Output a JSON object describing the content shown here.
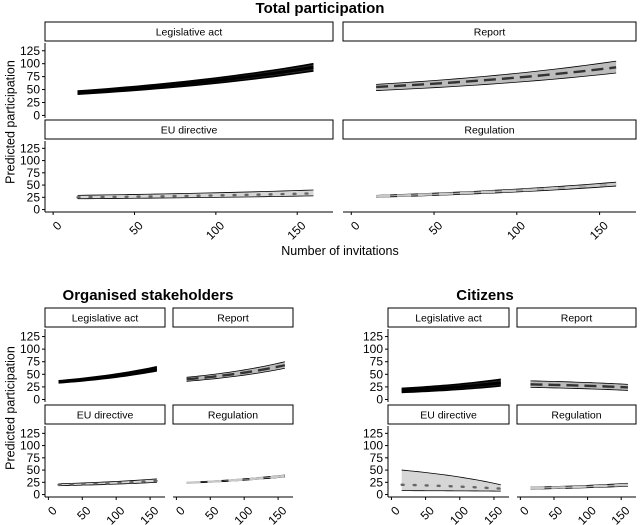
{
  "chart_data": {
    "type": "line",
    "x_label": "Number of invitations",
    "y_label": "Predicted participation",
    "panels": [
      {
        "title": "Total participation",
        "x_ticks": [
          0,
          50,
          100,
          150
        ],
        "y_ticks": [
          0,
          25,
          50,
          75,
          100,
          125
        ],
        "xlim": [
          -5,
          172
        ],
        "ylim": [
          -5,
          140
        ],
        "facets": [
          {
            "label": "Legislative act",
            "style": "solid",
            "color": "#000000",
            "band_fill": "#000000",
            "x": [
              15,
              160
            ],
            "mid": [
              44,
              93
            ],
            "low": [
              41,
              86
            ],
            "high": [
              47,
              100
            ]
          },
          {
            "label": "Report",
            "style": "dashed",
            "color": "#333333",
            "band_fill": "#a6a6a6",
            "x": [
              15,
              160
            ],
            "mid": [
              55,
              93
            ],
            "low": [
              48,
              82
            ],
            "high": [
              60,
              105
            ]
          },
          {
            "label": "EU directive",
            "style": "dotted",
            "color": "#666666",
            "band_fill": "#c8c8c8",
            "x": [
              15,
              160
            ],
            "mid": [
              25,
              33
            ],
            "low": [
              22,
              28
            ],
            "high": [
              29,
              40
            ]
          },
          {
            "label": "Regulation",
            "style": "longdash",
            "color": "#c8c8c8",
            "band_fill": "#8c8c8c",
            "x": [
              15,
              160
            ],
            "mid": [
              27,
              52
            ],
            "low": [
              25,
              48
            ],
            "high": [
              29,
              56
            ]
          }
        ]
      },
      {
        "title": "Organised stakeholders",
        "x_ticks": [
          0,
          50,
          100,
          150
        ],
        "y_ticks": [
          0,
          25,
          50,
          75,
          100,
          125
        ],
        "xlim": [
          -5,
          172
        ],
        "ylim": [
          -5,
          140
        ],
        "facets": [
          {
            "label": "Legislative act",
            "style": "solid",
            "color": "#000000",
            "band_fill": "#000000",
            "x": [
              15,
              160
            ],
            "mid": [
              35,
              61
            ],
            "low": [
              33,
              57
            ],
            "high": [
              37,
              65
            ]
          },
          {
            "label": "Report",
            "style": "dashed",
            "color": "#333333",
            "band_fill": "#a6a6a6",
            "x": [
              15,
              160
            ],
            "mid": [
              40,
              68
            ],
            "low": [
              36,
              62
            ],
            "high": [
              44,
              75
            ]
          },
          {
            "label": "EU directive",
            "style": "dotted",
            "color": "#666666",
            "band_fill": "#c8c8c8",
            "x": [
              15,
              160
            ],
            "mid": [
              20,
              28
            ],
            "low": [
              18,
              25
            ],
            "high": [
              22,
              32
            ]
          },
          {
            "label": "Regulation",
            "style": "longdash",
            "color": "#c8c8c8",
            "band_fill": "#8c8c8c",
            "x": [
              15,
              160
            ],
            "mid": [
              24,
              38
            ],
            "low": [
              23,
              36
            ],
            "high": [
              25,
              40
            ]
          }
        ]
      },
      {
        "title": "Citizens",
        "x_ticks": [
          0,
          50,
          100,
          150
        ],
        "y_ticks": [
          0,
          25,
          50,
          75,
          100,
          125
        ],
        "xlim": [
          -5,
          172
        ],
        "ylim": [
          -5,
          140
        ],
        "facets": [
          {
            "label": "Legislative act",
            "style": "solid",
            "color": "#000000",
            "band_fill": "#000000",
            "x": [
              15,
              160
            ],
            "mid": [
              18,
              33
            ],
            "low": [
              14,
              27
            ],
            "high": [
              22,
              40
            ]
          },
          {
            "label": "Report",
            "style": "dashed",
            "color": "#333333",
            "band_fill": "#a6a6a6",
            "x": [
              15,
              160
            ],
            "mid": [
              30,
              24
            ],
            "low": [
              24,
              18
            ],
            "high": [
              37,
              30
            ]
          },
          {
            "label": "EU directive",
            "style": "dotted",
            "color": "#666666",
            "band_fill": "#c8c8c8",
            "x": [
              15,
              160
            ],
            "mid": [
              20,
              12
            ],
            "low": [
              8,
              7
            ],
            "high": [
              50,
              20
            ]
          },
          {
            "label": "Regulation",
            "style": "longdash",
            "color": "#c8c8c8",
            "band_fill": "#8c8c8c",
            "x": [
              15,
              160
            ],
            "mid": [
              13,
              20
            ],
            "low": [
              11,
              17
            ],
            "high": [
              15,
              23
            ]
          }
        ]
      }
    ]
  }
}
